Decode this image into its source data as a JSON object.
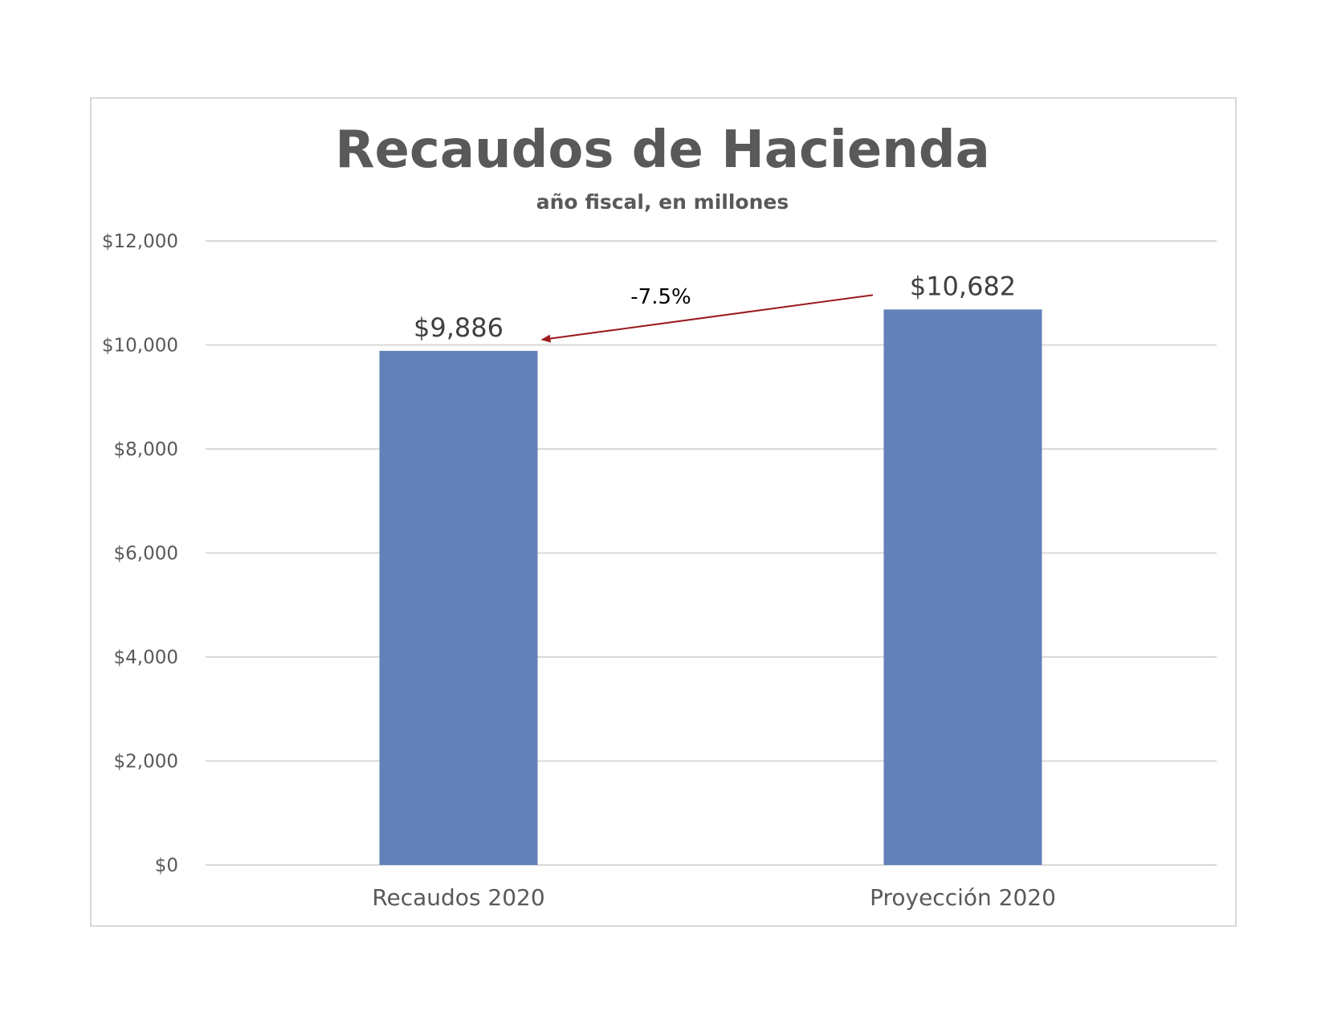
{
  "chart_data": {
    "type": "bar",
    "title": "Recaudos de Hacienda",
    "subtitle": "año fiscal, en millones",
    "categories": [
      "Recaudos 2020",
      "Proyección 2020"
    ],
    "values": [
      9886,
      10682
    ],
    "data_labels": [
      "$9,886",
      "$10,682"
    ],
    "ylim": [
      0,
      12000
    ],
    "yticks": [
      0,
      2000,
      4000,
      6000,
      8000,
      10000,
      12000
    ],
    "ytick_labels": [
      "$0",
      "$2,000",
      "$4,000",
      "$6,000",
      "$8,000",
      "$10,000",
      "$12,000"
    ],
    "grid": true,
    "legend": "none",
    "annotation": {
      "text": "-7.5%",
      "arrow_from": "Proyección 2020",
      "arrow_to": "Recaudos 2020"
    },
    "colors": {
      "bar": "#6281b9",
      "arrow": "#9b1a1a",
      "grid": "#d9d9d9",
      "text": "#595959"
    }
  }
}
